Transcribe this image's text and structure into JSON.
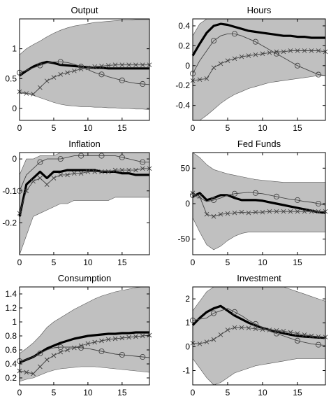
{
  "style": {
    "band_color": "#c0c0c0",
    "line_color": "#000000",
    "marker_color": "#444444"
  },
  "chart_data": [
    {
      "type": "line",
      "title": "Output",
      "xlim": [
        0,
        19
      ],
      "ylim": [
        -0.2,
        1.5
      ],
      "xticks": [
        0,
        5,
        10,
        15
      ],
      "xtick_labels": [
        "0",
        "5",
        "10",
        "15"
      ],
      "yticks": [
        0,
        0.5,
        1
      ],
      "ytick_labels": [
        "0",
        "0.5",
        "1"
      ],
      "band": {
        "lower": [
          0.25,
          0.25,
          0.22,
          0.18,
          0.14,
          0.1,
          0.07,
          0.05,
          0.04,
          0.03,
          0.03,
          0.02,
          0.02,
          0.01,
          0.01,
          0.0,
          0.0,
          -0.01,
          -0.01,
          -0.02
        ],
        "upper": [
          0.9,
          1.0,
          1.07,
          1.13,
          1.2,
          1.26,
          1.31,
          1.35,
          1.38,
          1.4,
          1.42,
          1.44,
          1.45,
          1.46,
          1.47,
          1.48,
          1.48,
          1.49,
          1.49,
          1.49
        ]
      },
      "series": [
        {
          "style": "thick",
          "marker": "none",
          "values": [
            0.55,
            0.63,
            0.7,
            0.75,
            0.78,
            0.76,
            0.73,
            0.72,
            0.71,
            0.7,
            0.69,
            0.68,
            0.68,
            0.67,
            0.67,
            0.67,
            0.67,
            0.67,
            0.67,
            0.67
          ]
        },
        {
          "style": "thin",
          "marker": "circle",
          "values": [
            0.6,
            0.64,
            0.68,
            0.72,
            0.76,
            0.78,
            0.78,
            0.77,
            0.74,
            0.7,
            0.65,
            0.6,
            0.57,
            0.53,
            0.5,
            0.47,
            0.44,
            0.42,
            0.41,
            0.4
          ]
        },
        {
          "style": "thin",
          "marker": "x",
          "values": [
            0.28,
            0.25,
            0.24,
            0.35,
            0.46,
            0.52,
            0.57,
            0.6,
            0.63,
            0.66,
            0.68,
            0.7,
            0.71,
            0.72,
            0.73,
            0.73,
            0.73,
            0.73,
            0.73,
            0.73
          ]
        }
      ]
    },
    {
      "type": "line",
      "title": "Hours",
      "xlim": [
        0,
        19
      ],
      "ylim": [
        -0.55,
        0.47
      ],
      "xticks": [
        0,
        5,
        10,
        15
      ],
      "xtick_labels": [
        "0",
        "5",
        "10",
        "15"
      ],
      "yticks": [
        -0.4,
        -0.2,
        0,
        0.2,
        0.4
      ],
      "ytick_labels": [
        "-0.4",
        "-0.2",
        "0",
        "0.2",
        "0.4"
      ],
      "band": {
        "lower": [
          -0.55,
          -0.55,
          -0.5,
          -0.44,
          -0.38,
          -0.33,
          -0.29,
          -0.26,
          -0.23,
          -0.21,
          -0.19,
          -0.17,
          -0.16,
          -0.15,
          -0.14,
          -0.13,
          -0.12,
          -0.11,
          -0.1,
          -0.1
        ],
        "upper": [
          0.3,
          0.42,
          0.47,
          0.47,
          0.47,
          0.47,
          0.47,
          0.47,
          0.47,
          0.47,
          0.47,
          0.47,
          0.47,
          0.47,
          0.47,
          0.47,
          0.47,
          0.47,
          0.47,
          0.47
        ]
      },
      "series": [
        {
          "style": "thick",
          "marker": "none",
          "values": [
            0.1,
            0.22,
            0.33,
            0.4,
            0.42,
            0.41,
            0.39,
            0.37,
            0.35,
            0.34,
            0.33,
            0.32,
            0.31,
            0.3,
            0.3,
            0.29,
            0.29,
            0.28,
            0.28,
            0.28
          ]
        },
        {
          "style": "thin",
          "marker": "circle",
          "values": [
            -0.08,
            0.05,
            0.15,
            0.25,
            0.3,
            0.32,
            0.32,
            0.3,
            0.27,
            0.24,
            0.2,
            0.16,
            0.12,
            0.08,
            0.04,
            0.0,
            -0.03,
            -0.06,
            -0.09,
            -0.1
          ]
        },
        {
          "style": "thin",
          "marker": "x",
          "values": [
            -0.15,
            -0.14,
            -0.13,
            -0.02,
            0.02,
            0.05,
            0.07,
            0.09,
            0.1,
            0.11,
            0.12,
            0.13,
            0.14,
            0.14,
            0.15,
            0.15,
            0.15,
            0.15,
            0.15,
            0.14
          ]
        }
      ]
    },
    {
      "type": "line",
      "title": "Inflation",
      "xlim": [
        0,
        19
      ],
      "ylim": [
        -0.3,
        0.02
      ],
      "xticks": [
        0,
        5,
        10,
        15
      ],
      "xtick_labels": [
        "0",
        "5",
        "10",
        "15"
      ],
      "yticks": [
        -0.2,
        -0.1,
        0
      ],
      "ytick_labels": [
        "-0.2",
        "-0.1",
        "0"
      ],
      "band": {
        "lower": [
          -0.3,
          -0.24,
          -0.18,
          -0.17,
          -0.16,
          -0.15,
          -0.14,
          -0.14,
          -0.13,
          -0.13,
          -0.13,
          -0.13,
          -0.13,
          -0.13,
          -0.12,
          -0.12,
          -0.12,
          -0.12,
          -0.12,
          -0.12
        ],
        "upper": [
          -0.05,
          0.0,
          0.0,
          0.01,
          0.01,
          0.01,
          0.02,
          0.02,
          0.02,
          0.02,
          0.02,
          0.02,
          0.02,
          0.02,
          0.02,
          0.02,
          0.02,
          0.02,
          0.02,
          0.02
        ]
      },
      "series": [
        {
          "style": "thick",
          "marker": "none",
          "values": [
            -0.18,
            -0.08,
            -0.06,
            -0.04,
            -0.06,
            -0.04,
            -0.04,
            -0.035,
            -0.035,
            -0.035,
            -0.035,
            -0.035,
            -0.04,
            -0.04,
            -0.04,
            -0.045,
            -0.045,
            -0.05,
            -0.05,
            -0.05
          ]
        },
        {
          "style": "thin",
          "marker": "circle",
          "values": [
            -0.1,
            -0.05,
            -0.03,
            -0.01,
            0.0,
            0.0,
            0.0,
            0.005,
            0.01,
            0.01,
            0.01,
            0.01,
            0.01,
            0.01,
            0.01,
            0.005,
            0.0,
            -0.005,
            -0.01,
            -0.01
          ]
        },
        {
          "style": "thin",
          "marker": "x",
          "values": [
            -0.17,
            -0.1,
            -0.07,
            -0.06,
            -0.08,
            -0.06,
            -0.05,
            -0.05,
            -0.045,
            -0.045,
            -0.04,
            -0.04,
            -0.04,
            -0.04,
            -0.035,
            -0.035,
            -0.035,
            -0.035,
            -0.03,
            -0.03
          ]
        }
      ]
    },
    {
      "type": "line",
      "title": "Fed Funds",
      "xlim": [
        0,
        19
      ],
      "ylim": [
        -72,
        72
      ],
      "xticks": [
        0,
        5,
        10,
        15
      ],
      "xtick_labels": [
        "0",
        "5",
        "10",
        "15"
      ],
      "yticks": [
        -50,
        0,
        50
      ],
      "ytick_labels": [
        "-50",
        "0",
        "50"
      ],
      "band": {
        "lower": [
          -20,
          -40,
          -58,
          -65,
          -60,
          -52,
          -46,
          -42,
          -40,
          -40,
          -40,
          -40,
          -40,
          -40,
          -40,
          -40,
          -40,
          -40,
          -40,
          -40
        ],
        "upper": [
          72,
          65,
          55,
          48,
          45,
          42,
          40,
          38,
          36,
          34,
          33,
          32,
          31,
          30,
          30,
          30,
          30,
          30,
          30,
          30
        ]
      },
      "series": [
        {
          "style": "thick",
          "marker": "none",
          "values": [
            10,
            15,
            5,
            8,
            12,
            12,
            8,
            5,
            5,
            5,
            4,
            2,
            0,
            -2,
            -4,
            -6,
            -8,
            -10,
            -12,
            -13
          ]
        },
        {
          "style": "thin",
          "marker": "circle",
          "values": [
            12,
            8,
            3,
            5,
            8,
            12,
            14,
            15,
            16,
            15,
            14,
            12,
            10,
            8,
            6,
            5,
            3,
            2,
            0,
            -2
          ]
        },
        {
          "style": "thin",
          "marker": "x",
          "values": [
            15,
            10,
            -15,
            -18,
            -15,
            -14,
            -13,
            -12,
            -13,
            -12,
            -12,
            -11,
            -11,
            -11,
            -11,
            -11,
            -11,
            -11,
            -11,
            -11
          ]
        }
      ]
    },
    {
      "type": "line",
      "title": "Consumption",
      "xlim": [
        0,
        19
      ],
      "ylim": [
        0.1,
        1.5
      ],
      "xticks": [
        0,
        5,
        10,
        15
      ],
      "xtick_labels": [
        "0",
        "5",
        "10",
        "15"
      ],
      "yticks": [
        0.2,
        0.4,
        0.6,
        0.8,
        1,
        1.2,
        1.4
      ],
      "ytick_labels": [
        "0.2",
        "0.4",
        "0.6",
        "0.8",
        "1",
        "1.2",
        "1.4"
      ],
      "band": {
        "lower": [
          0.15,
          0.18,
          0.2,
          0.24,
          0.28,
          0.31,
          0.33,
          0.34,
          0.35,
          0.36,
          0.36,
          0.36,
          0.35,
          0.34,
          0.33,
          0.32,
          0.31,
          0.3,
          0.29,
          0.28
        ],
        "upper": [
          0.55,
          0.62,
          0.7,
          0.8,
          0.92,
          1.0,
          1.06,
          1.12,
          1.18,
          1.23,
          1.28,
          1.33,
          1.37,
          1.4,
          1.43,
          1.45,
          1.47,
          1.49,
          1.5,
          1.5
        ]
      },
      "series": [
        {
          "style": "thick",
          "marker": "none",
          "values": [
            0.42,
            0.46,
            0.5,
            0.56,
            0.62,
            0.66,
            0.7,
            0.73,
            0.76,
            0.78,
            0.8,
            0.81,
            0.82,
            0.83,
            0.83,
            0.84,
            0.84,
            0.85,
            0.85,
            0.85
          ]
        },
        {
          "style": "thin",
          "marker": "circle",
          "values": [
            0.44,
            0.46,
            0.5,
            0.55,
            0.6,
            0.63,
            0.64,
            0.64,
            0.64,
            0.63,
            0.62,
            0.6,
            0.58,
            0.56,
            0.54,
            0.53,
            0.52,
            0.51,
            0.5,
            0.49
          ]
        },
        {
          "style": "thin",
          "marker": "x",
          "values": [
            0.3,
            0.28,
            0.26,
            0.36,
            0.46,
            0.52,
            0.57,
            0.6,
            0.63,
            0.66,
            0.69,
            0.71,
            0.73,
            0.75,
            0.76,
            0.77,
            0.78,
            0.79,
            0.8,
            0.81
          ]
        }
      ]
    },
    {
      "type": "line",
      "title": "Investment",
      "xlim": [
        0,
        19
      ],
      "ylim": [
        -1.6,
        2.5
      ],
      "xticks": [
        0,
        5,
        10,
        15
      ],
      "xtick_labels": [
        "0",
        "5",
        "10",
        "15"
      ],
      "yticks": [
        -1,
        0,
        1,
        2
      ],
      "ytick_labels": [
        "-1",
        "0",
        "1",
        "2"
      ],
      "band": {
        "lower": [
          -0.5,
          -0.9,
          -1.3,
          -1.6,
          -1.5,
          -1.3,
          -1.1,
          -1.0,
          -0.9,
          -0.8,
          -0.75,
          -0.7,
          -0.65,
          -0.6,
          -0.55,
          -0.5,
          -0.5,
          -0.5,
          -0.5,
          -0.5
        ],
        "upper": [
          1.5,
          1.9,
          2.3,
          2.5,
          2.5,
          2.5,
          2.5,
          2.5,
          2.5,
          2.5,
          2.5,
          2.5,
          2.5,
          2.5,
          2.4,
          2.3,
          2.2,
          2.1,
          2.0,
          1.9
        ]
      },
      "series": [
        {
          "style": "thick",
          "marker": "none",
          "values": [
            0.9,
            1.2,
            1.45,
            1.6,
            1.7,
            1.5,
            1.3,
            1.15,
            1.0,
            0.88,
            0.78,
            0.7,
            0.63,
            0.56,
            0.5,
            0.45,
            0.42,
            0.4,
            0.38,
            0.37
          ]
        },
        {
          "style": "thin",
          "marker": "circle",
          "values": [
            1.1,
            1.15,
            1.2,
            1.4,
            1.5,
            1.6,
            1.45,
            1.3,
            1.1,
            0.95,
            0.8,
            0.65,
            0.55,
            0.45,
            0.35,
            0.25,
            0.18,
            0.12,
            0.08,
            0.05
          ]
        },
        {
          "style": "thin",
          "marker": "x",
          "values": [
            0.15,
            0.12,
            0.2,
            0.3,
            0.5,
            0.7,
            0.8,
            0.8,
            0.78,
            0.75,
            0.72,
            0.7,
            0.68,
            0.65,
            0.6,
            0.55,
            0.5,
            0.45,
            0.42,
            0.4
          ]
        }
      ]
    }
  ]
}
